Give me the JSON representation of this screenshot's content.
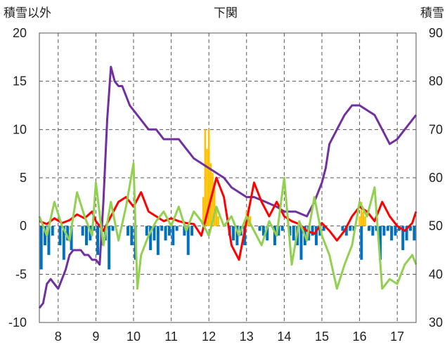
{
  "chart_data": {
    "type": "line",
    "title": "下関",
    "ylabel_left": "積雪以外",
    "ylabel_right": "積雪",
    "x_tick_labels": [
      "8",
      "9",
      "10",
      "11",
      "12",
      "13",
      "14",
      "15",
      "16",
      "17"
    ],
    "x_tick_values": [
      8,
      9,
      10,
      11,
      12,
      13,
      14,
      15,
      16,
      17
    ],
    "xlim": [
      7.5,
      17.5
    ],
    "ylim_left": [
      -10,
      20
    ],
    "ylim_right": [
      30,
      90
    ],
    "y_left_ticks": [
      -10,
      -5,
      0,
      5,
      10,
      15,
      20
    ],
    "y_right_ticks": [
      30,
      40,
      50,
      60,
      70,
      80,
      90
    ],
    "y_left_tick_labels": [
      "-10",
      "-5",
      "0",
      "5",
      "10",
      "15",
      "20"
    ],
    "y_right_tick_labels": [
      "30",
      "40",
      "50",
      "60",
      "70",
      "80",
      "90"
    ],
    "grid": true,
    "colors": {
      "purple": "#7030a0",
      "red": "#ff0000",
      "green": "#92d050",
      "blue": "#0070c0",
      "orange": "#ffc000",
      "grid": "#555555"
    },
    "series": [
      {
        "axis": "right",
        "color": "#7030a0",
        "x": [
          7.5,
          7.6,
          7.7,
          7.8,
          7.9,
          8.0,
          8.1,
          8.2,
          8.3,
          8.4,
          8.5,
          8.6,
          8.7,
          8.8,
          8.9,
          9.0,
          9.1,
          9.2,
          9.3,
          9.4,
          9.5,
          9.6,
          9.7,
          9.8,
          9.9,
          10.0,
          10.2,
          10.4,
          10.6,
          10.8,
          11.0,
          11.2,
          11.4,
          11.6,
          11.8,
          12.0,
          12.2,
          12.4,
          12.6,
          12.8,
          13.0,
          13.2,
          13.5,
          13.8,
          14.0,
          14.3,
          14.6,
          14.8,
          15.0,
          15.1,
          15.2,
          15.4,
          15.6,
          15.8,
          16.0,
          16.2,
          16.4,
          16.6,
          16.8,
          17.0,
          17.2,
          17.4,
          17.5
        ],
        "values": [
          33,
          34,
          38,
          39,
          38,
          37,
          39,
          41,
          44,
          45,
          45,
          45,
          44,
          44,
          43,
          43,
          42,
          55,
          72,
          83,
          80,
          79,
          79,
          77,
          75,
          74,
          72,
          70,
          70,
          68,
          68,
          68,
          66,
          64,
          63,
          62,
          61,
          60,
          58,
          57,
          56,
          56,
          55,
          54,
          53,
          53,
          52,
          55,
          59,
          62,
          67,
          70,
          73,
          75,
          75,
          74,
          73,
          70,
          67,
          68,
          70,
          72,
          73
        ]
      },
      {
        "axis": "left",
        "color": "#ff0000",
        "x": [
          7.5,
          7.7,
          7.9,
          8.1,
          8.3,
          8.5,
          8.7,
          8.9,
          9.0,
          9.2,
          9.4,
          9.6,
          9.8,
          10.0,
          10.2,
          10.4,
          10.6,
          10.8,
          11.0,
          11.2,
          11.4,
          11.6,
          11.8,
          12.0,
          12.2,
          12.4,
          12.6,
          12.8,
          13.0,
          13.2,
          13.4,
          13.6,
          13.8,
          14.0,
          14.2,
          14.4,
          14.6,
          14.8,
          15.0,
          15.2,
          15.4,
          15.6,
          15.8,
          16.0,
          16.2,
          16.4,
          16.6,
          16.8,
          17.0,
          17.2,
          17.4,
          17.5
        ],
        "values": [
          0.5,
          0.2,
          0.8,
          0.3,
          0.6,
          1.2,
          0.8,
          1.5,
          0.5,
          -0.5,
          1.0,
          2.5,
          3.0,
          2.0,
          3.5,
          1.5,
          1.0,
          0.5,
          0.8,
          0.5,
          0.3,
          0.2,
          -1.0,
          2.0,
          5.0,
          3.0,
          -2.0,
          -3.5,
          0.5,
          4.5,
          2.5,
          1.0,
          2.5,
          1.0,
          0.5,
          0.2,
          -0.5,
          -0.8,
          0.3,
          -0.5,
          -1.5,
          -0.5,
          1.0,
          2.0,
          1.5,
          0.5,
          2.5,
          1.0,
          0.0,
          -0.5,
          0.3,
          1.5
        ]
      },
      {
        "axis": "left",
        "color": "#92d050",
        "x": [
          7.5,
          7.7,
          7.9,
          8.1,
          8.3,
          8.5,
          8.7,
          8.9,
          9.0,
          9.2,
          9.4,
          9.6,
          9.8,
          10.0,
          10.1,
          10.2,
          10.4,
          10.6,
          10.8,
          11.0,
          11.2,
          11.4,
          11.6,
          11.8,
          12.0,
          12.2,
          12.4,
          12.6,
          12.8,
          13.0,
          13.2,
          13.4,
          13.6,
          13.8,
          14.0,
          14.2,
          14.4,
          14.6,
          14.8,
          15.0,
          15.2,
          15.4,
          15.6,
          15.8,
          16.0,
          16.2,
          16.4,
          16.6,
          16.8,
          17.0,
          17.2,
          17.4,
          17.5
        ],
        "values": [
          1.0,
          -1.0,
          2.5,
          0.0,
          -1.5,
          3.5,
          1.0,
          -1.0,
          4.5,
          -2.0,
          2.5,
          -1.5,
          2.0,
          6.5,
          -6.5,
          -3.0,
          -1.0,
          0.5,
          1.5,
          0.0,
          2.0,
          -0.5,
          1.5,
          0.5,
          -1.0,
          2.0,
          0.0,
          1.0,
          -1.0,
          1.0,
          -0.5,
          -2.0,
          0.5,
          -1.0,
          5.0,
          -4.0,
          0.5,
          -1.5,
          3.0,
          -1.0,
          -3.0,
          -6.5,
          -4.0,
          -2.0,
          2.5,
          1.0,
          4.0,
          -6.5,
          -5.5,
          -6.0,
          -4.0,
          -3.0,
          -4.0
        ]
      }
    ],
    "bars": [
      {
        "axis": "left",
        "color": "#0070c0",
        "x": [
          7.55,
          7.65,
          7.75,
          7.85,
          8.05,
          8.15,
          8.25,
          8.35,
          8.65,
          8.75,
          8.85,
          8.95,
          9.05,
          9.15,
          9.25,
          9.35,
          9.45,
          9.85,
          9.95,
          10.05,
          10.35,
          10.45,
          10.55,
          10.65,
          10.75,
          10.85,
          10.95,
          11.05,
          11.15,
          11.35,
          11.45,
          11.55,
          12.55,
          12.65,
          12.75,
          12.85,
          12.95,
          13.35,
          13.45,
          13.55,
          13.75,
          13.85,
          13.95,
          14.15,
          14.25,
          14.35,
          14.45,
          14.55,
          14.65,
          14.75,
          14.85,
          14.95,
          15.05,
          15.55,
          15.65,
          15.75,
          15.85,
          16.05,
          16.25,
          16.35,
          16.45,
          16.55,
          16.65,
          16.75,
          16.85,
          16.95,
          17.05,
          17.15,
          17.25,
          17.35,
          17.45
        ],
        "values": [
          -4.5,
          -2.0,
          -3.0,
          -1.0,
          -2.0,
          -3.5,
          -1.5,
          -2.5,
          -1.0,
          -2.0,
          -1.5,
          -0.5,
          -3.0,
          -2.0,
          -1.5,
          -4.5,
          -0.5,
          -1.0,
          -2.0,
          -3.5,
          -1.0,
          -2.5,
          -1.5,
          -3.0,
          -0.5,
          -1.5,
          -1.0,
          -2.0,
          -0.5,
          -1.0,
          -3.0,
          -1.0,
          -1.0,
          -1.5,
          -2.0,
          -1.0,
          -2.0,
          -0.5,
          -1.0,
          -1.5,
          -2.0,
          -1.0,
          -0.5,
          -1.0,
          -1.5,
          -2.0,
          -3.5,
          -2.0,
          -1.5,
          -1.0,
          -2.0,
          -1.0,
          -0.5,
          -0.5,
          -1.0,
          -0.5,
          -0.5,
          -3.5,
          -0.5,
          -1.0,
          -0.5,
          -3.5,
          -1.0,
          -0.5,
          -1.5,
          -1.0,
          -0.5,
          -2.5,
          -1.5,
          -0.5,
          -1.5
        ]
      },
      {
        "axis": "left",
        "color": "#ffc000",
        "x": [
          11.85,
          11.9,
          11.95,
          12.0,
          12.05,
          12.1,
          12.15,
          12.2,
          12.25,
          13.0,
          13.05,
          13.1,
          16.0,
          16.05,
          16.1,
          16.15
        ],
        "values": [
          3.0,
          10.0,
          8.0,
          10.0,
          6.5,
          5.5,
          4.5,
          2.0,
          1.0,
          1.5,
          2.0,
          1.0,
          1.0,
          2.5,
          1.5,
          1.0
        ]
      }
    ]
  }
}
